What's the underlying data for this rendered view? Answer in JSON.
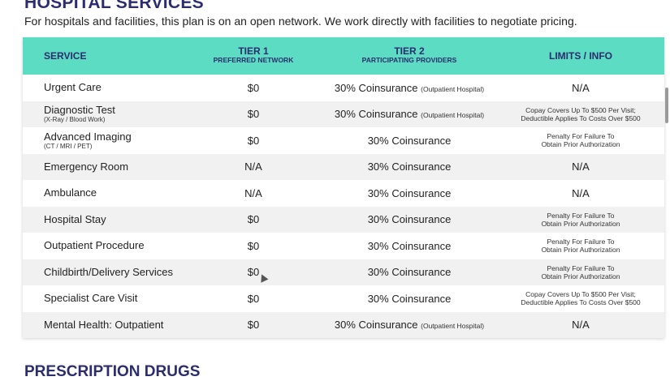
{
  "section": {
    "title": "HOSPITAL SERVICES",
    "subtitle": "For hospitals and facilities, this plan is on an open network. We work directly with facilities to negotiate pricing."
  },
  "table": {
    "headers": {
      "service": "SERVICE",
      "tier1": "TIER 1",
      "tier1_sub": "PREFERRED NETWORK",
      "tier2": "TIER 2",
      "tier2_sub": "PARTICIPATING PROVIDERS",
      "limits": "LIMITS / INFO"
    },
    "rows": [
      {
        "service": "Urgent Care",
        "service_sub": "",
        "tier1": "$0",
        "tier2": "30% Coinsurance",
        "tier2_note": "(Outpatient Hospital)",
        "info1": "N/A",
        "info2": ""
      },
      {
        "service": "Diagnostic Test",
        "service_sub": "(X-Ray / Blood Work)",
        "tier1": "$0",
        "tier2": "30% Coinsurance",
        "tier2_note": "(Outpatient Hospital)",
        "info1": "Copay Covers Up To $500 Per Visit;",
        "info2": "Deductible Applies To Costs Over $500"
      },
      {
        "service": "Advanced Imaging",
        "service_sub": "(CT / MRI / PET)",
        "tier1": "$0",
        "tier2": "30% Coinsurance",
        "tier2_note": "",
        "info1": "Penalty For Failure To",
        "info2": "Obtain Prior Authorization"
      },
      {
        "service": "Emergency Room",
        "service_sub": "",
        "tier1": "N/A",
        "tier2": "30% Coinsurance",
        "tier2_note": "",
        "info1": "N/A",
        "info2": ""
      },
      {
        "service": "Ambulance",
        "service_sub": "",
        "tier1": "N/A",
        "tier2": "30% Coinsurance",
        "tier2_note": "",
        "info1": "N/A",
        "info2": ""
      },
      {
        "service": "Hospital Stay",
        "service_sub": "",
        "tier1": "$0",
        "tier2": "30% Coinsurance",
        "tier2_note": "",
        "info1": "Penalty For Failure To",
        "info2": "Obtain Prior Authorization"
      },
      {
        "service": "Outpatient Procedure",
        "service_sub": "",
        "tier1": "$0",
        "tier2": "30% Coinsurance",
        "tier2_note": "",
        "info1": "Penalty For Failure To",
        "info2": "Obtain Prior Authorization"
      },
      {
        "service": "Childbirth/Delivery Services",
        "service_sub": "",
        "tier1": "$0",
        "tier2": "30% Coinsurance",
        "tier2_note": "",
        "info1": "Penalty For Failure To",
        "info2": "Obtain Prior Authorization"
      },
      {
        "service": "Specialist Care Visit",
        "service_sub": "",
        "tier1": "$0",
        "tier2": "30% Coinsurance",
        "tier2_note": "",
        "info1": "Copay Covers Up To $500 Per Visit;",
        "info2": "Deductible Applies To Costs Over $500"
      },
      {
        "service": "Mental Health: Outpatient",
        "service_sub": "",
        "tier1": "$0",
        "tier2": "30% Coinsurance",
        "tier2_note": "(Outpatient Hospital)",
        "info1": "N/A",
        "info2": ""
      }
    ]
  },
  "next_section": {
    "title": "PRESCRIPTION DRUGS"
  },
  "colors": {
    "header_bg": "#5ddcc4",
    "title_color": "#2b2d6e",
    "alt_row": "#f1f1f1"
  }
}
